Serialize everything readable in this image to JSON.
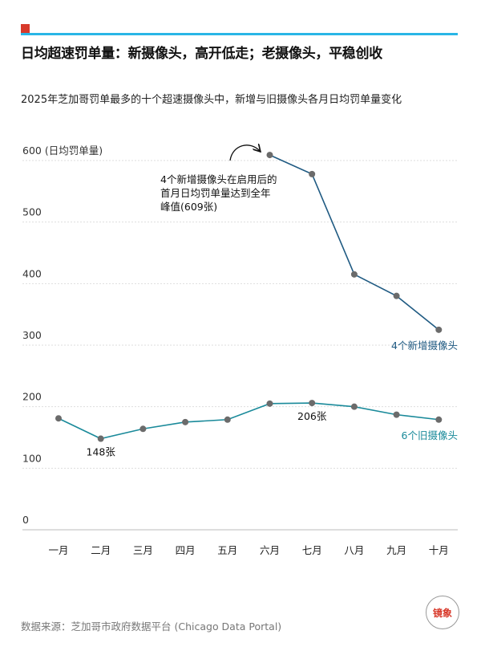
{
  "header": {
    "title": "日均超速罚单量：新摄像头，高开低走；老摄像头，平稳创收",
    "subtitle": "2025年芝加哥罚单最多的十个超速摄像头中，新增与旧摄像头各月日均罚单量变化"
  },
  "footer": {
    "source": "数据来源：芝加哥市政府数据平台 (Chicago Data Portal)",
    "logo_text": "镜象"
  },
  "colors": {
    "accent_red": "#d83a2b",
    "accent_cyan": "#29b6e6",
    "new_series": "#1f5a82",
    "old_series": "#1a8a9a",
    "marker": "#6b6b6b"
  },
  "chart_data": {
    "type": "line",
    "title": "日均超速罚单量",
    "ylabel": "日均罚单量",
    "ylim": [
      0,
      600
    ],
    "yticks": [
      0,
      100,
      200,
      300,
      400,
      500,
      600
    ],
    "ytick_labels": [
      "0",
      "100",
      "200",
      "300",
      "400",
      "500",
      "600 (日均罚单量)"
    ],
    "grid": true,
    "categories": [
      "一月",
      "二月",
      "三月",
      "四月",
      "五月",
      "六月",
      "七月",
      "八月",
      "九月",
      "十月"
    ],
    "series": [
      {
        "name": "4个新增摄像头",
        "values": [
          null,
          null,
          null,
          null,
          null,
          609,
          578,
          415,
          380,
          325
        ]
      },
      {
        "name": "6个旧摄像头",
        "values": [
          181,
          148,
          164,
          175,
          179,
          205,
          206,
          200,
          187,
          179
        ]
      }
    ],
    "annotations": [
      {
        "text": "4个新增摄像头在启用后的首月日均罚单量达到全年峰值(609张)",
        "lines": [
          "4个新增摄像头在启用后的",
          "首月日均罚单量达到全年",
          "峰值(609张)"
        ]
      },
      {
        "text": "148张"
      },
      {
        "text": "206张"
      }
    ]
  }
}
